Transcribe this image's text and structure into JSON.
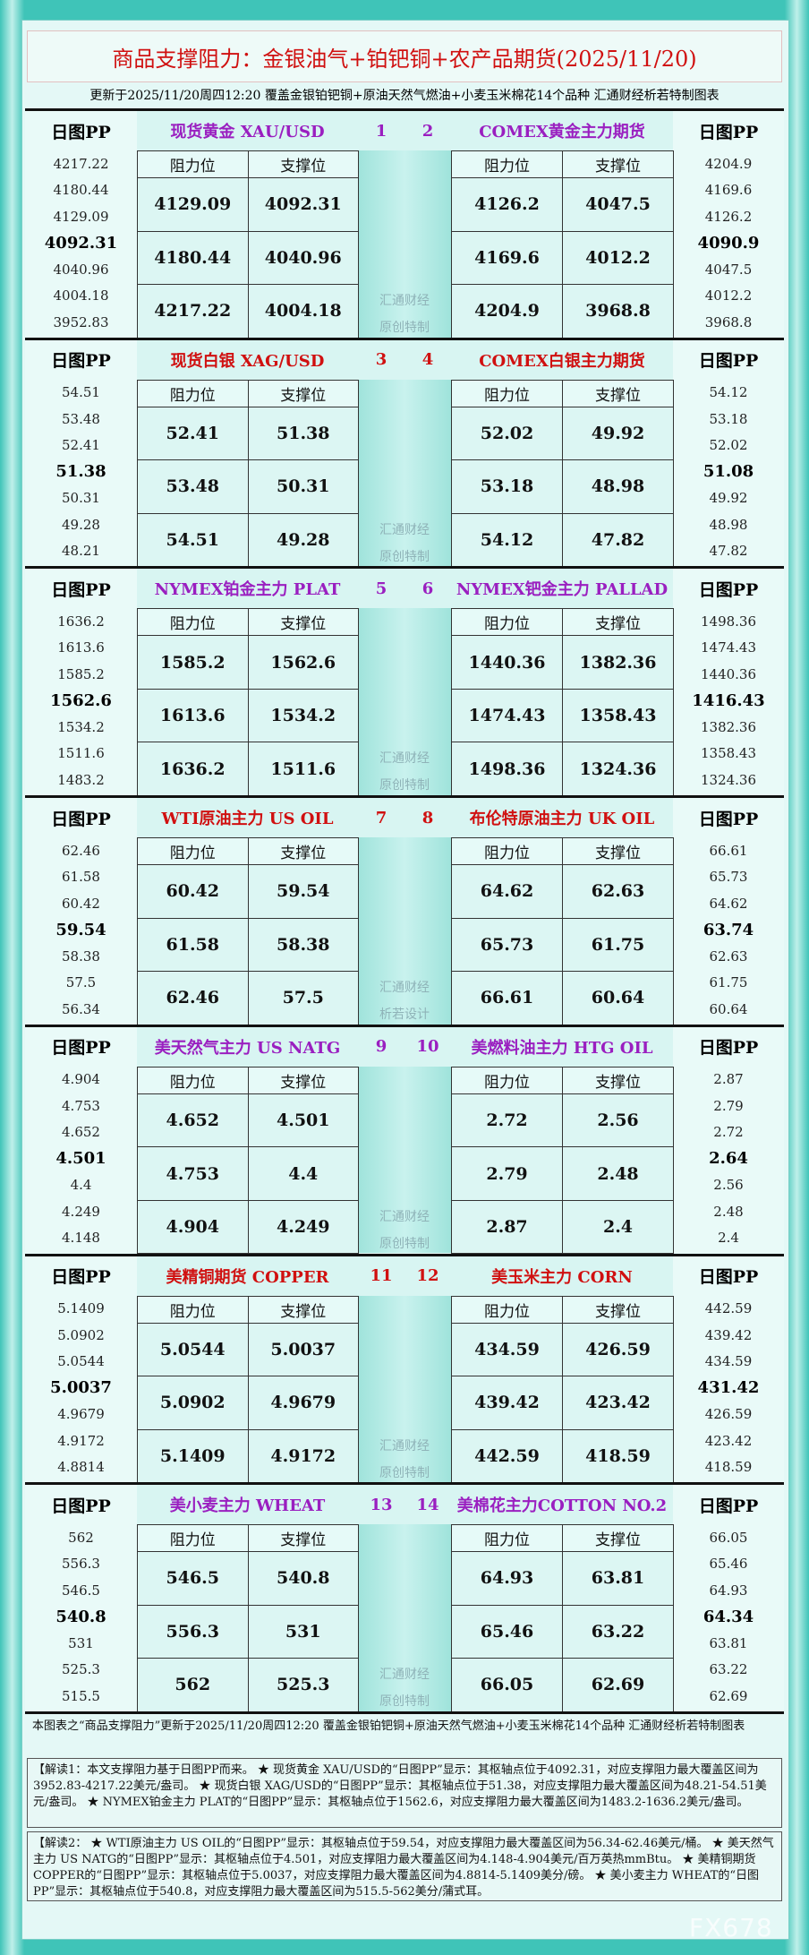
{
  "header": {
    "title": "商品支撑阻力：金银油气+铂钯铜+农产品期货(2025/11/20)",
    "subtitle": "更新于2025/11/20周四12:20 覆盖金银铂钯铜+原油天然气燃油+小麦玉米棉花14个品种 汇通财经析若特制图表"
  },
  "panels": [
    {
      "numbers": [
        "1",
        "2"
      ],
      "watermark": [
        "汇通财经",
        "原创特制"
      ],
      "left": {
        "pp_label": "日图PP",
        "name": "现货黄金 XAU/USD",
        "pp_levels": [
          "4217.22",
          "4180.44",
          "4129.09",
          "4092.31",
          "4040.96",
          "4004.18",
          "3952.83"
        ],
        "table": {
          "headers": [
            "阻力位",
            "支撑位"
          ],
          "rows": [
            [
              "4129.09",
              "4092.31"
            ],
            [
              "4180.44",
              "4040.96"
            ],
            [
              "4217.22",
              "4004.18"
            ]
          ]
        }
      },
      "right": {
        "pp_label": "日图PP",
        "name": "COMEX黄金主力期货",
        "pp_levels": [
          "4204.9",
          "4169.6",
          "4126.2",
          "4090.9",
          "4047.5",
          "4012.2",
          "3968.8"
        ],
        "table": {
          "headers": [
            "阻力位",
            "支撑位"
          ],
          "rows": [
            [
              "4126.2",
              "4047.5"
            ],
            [
              "4169.6",
              "4012.2"
            ],
            [
              "4204.9",
              "3968.8"
            ]
          ]
        }
      }
    },
    {
      "numbers": [
        "3",
        "4"
      ],
      "watermark": [
        "汇通财经",
        "原创特制"
      ],
      "left": {
        "pp_label": "日图PP",
        "name": "现货白银 XAG/USD",
        "pp_levels": [
          "54.51",
          "53.48",
          "52.41",
          "51.38",
          "50.31",
          "49.28",
          "48.21"
        ],
        "table": {
          "headers": [
            "阻力位",
            "支撑位"
          ],
          "rows": [
            [
              "52.41",
              "51.38"
            ],
            [
              "53.48",
              "50.31"
            ],
            [
              "54.51",
              "49.28"
            ]
          ]
        }
      },
      "right": {
        "pp_label": "日图PP",
        "name": "COMEX白银主力期货",
        "pp_levels": [
          "54.12",
          "53.18",
          "52.02",
          "51.08",
          "49.92",
          "48.98",
          "47.82"
        ],
        "table": {
          "headers": [
            "阻力位",
            "支撑位"
          ],
          "rows": [
            [
              "52.02",
              "49.92"
            ],
            [
              "53.18",
              "48.98"
            ],
            [
              "54.12",
              "47.82"
            ]
          ]
        }
      }
    },
    {
      "numbers": [
        "5",
        "6"
      ],
      "watermark": [
        "汇通财经",
        "原创特制"
      ],
      "left": {
        "pp_label": "日图PP",
        "name": "NYMEX铂金主力 PLAT",
        "pp_levels": [
          "1636.2",
          "1613.6",
          "1585.2",
          "1562.6",
          "1534.2",
          "1511.6",
          "1483.2"
        ],
        "table": {
          "headers": [
            "阻力位",
            "支撑位"
          ],
          "rows": [
            [
              "1585.2",
              "1562.6"
            ],
            [
              "1613.6",
              "1534.2"
            ],
            [
              "1636.2",
              "1511.6"
            ]
          ]
        }
      },
      "right": {
        "pp_label": "日图PP",
        "name": "NYMEX钯金主力 PALLAD",
        "pp_levels": [
          "1498.36",
          "1474.43",
          "1440.36",
          "1416.43",
          "1382.36",
          "1358.43",
          "1324.36"
        ],
        "table": {
          "headers": [
            "阻力位",
            "支撑位"
          ],
          "rows": [
            [
              "1440.36",
              "1382.36"
            ],
            [
              "1474.43",
              "1358.43"
            ],
            [
              "1498.36",
              "1324.36"
            ]
          ]
        }
      }
    },
    {
      "numbers": [
        "7",
        "8"
      ],
      "watermark": [
        "汇通财经",
        "析若设计"
      ],
      "left": {
        "pp_label": "日图PP",
        "name": "WTI原油主力 US OIL",
        "pp_levels": [
          "62.46",
          "61.58",
          "60.42",
          "59.54",
          "58.38",
          "57.5",
          "56.34"
        ],
        "table": {
          "headers": [
            "阻力位",
            "支撑位"
          ],
          "rows": [
            [
              "60.42",
              "59.54"
            ],
            [
              "61.58",
              "58.38"
            ],
            [
              "62.46",
              "57.5"
            ]
          ]
        }
      },
      "right": {
        "pp_label": "日图PP",
        "name": "布伦特原油主力 UK OIL",
        "pp_levels": [
          "66.61",
          "65.73",
          "64.62",
          "63.74",
          "62.63",
          "61.75",
          "60.64"
        ],
        "table": {
          "headers": [
            "阻力位",
            "支撑位"
          ],
          "rows": [
            [
              "64.62",
              "62.63"
            ],
            [
              "65.73",
              "61.75"
            ],
            [
              "66.61",
              "60.64"
            ]
          ]
        }
      }
    },
    {
      "numbers": [
        "9",
        "10"
      ],
      "watermark": [
        "汇通财经",
        "原创特制"
      ],
      "left": {
        "pp_label": "日图PP",
        "name": "美天然气主力 US NATG",
        "pp_levels": [
          "4.904",
          "4.753",
          "4.652",
          "4.501",
          "4.4",
          "4.249",
          "4.148"
        ],
        "table": {
          "headers": [
            "阻力位",
            "支撑位"
          ],
          "rows": [
            [
              "4.652",
              "4.501"
            ],
            [
              "4.753",
              "4.4"
            ],
            [
              "4.904",
              "4.249"
            ]
          ]
        }
      },
      "right": {
        "pp_label": "日图PP",
        "name": "美燃料油主力 HTG OIL",
        "pp_levels": [
          "2.87",
          "2.79",
          "2.72",
          "2.64",
          "2.56",
          "2.48",
          "2.4"
        ],
        "table": {
          "headers": [
            "阻力位",
            "支撑位"
          ],
          "rows": [
            [
              "2.72",
              "2.56"
            ],
            [
              "2.79",
              "2.48"
            ],
            [
              "2.87",
              "2.4"
            ]
          ]
        }
      }
    },
    {
      "numbers": [
        "11",
        "12"
      ],
      "watermark": [
        "汇通财经",
        "原创特制"
      ],
      "left": {
        "pp_label": "日图PP",
        "name": "美精铜期货 COPPER",
        "pp_levels": [
          "5.1409",
          "5.0902",
          "5.0544",
          "5.0037",
          "4.9679",
          "4.9172",
          "4.8814"
        ],
        "table": {
          "headers": [
            "阻力位",
            "支撑位"
          ],
          "rows": [
            [
              "5.0544",
              "5.0037"
            ],
            [
              "5.0902",
              "4.9679"
            ],
            [
              "5.1409",
              "4.9172"
            ]
          ]
        }
      },
      "right": {
        "pp_label": "日图PP",
        "name": "美玉米主力 CORN",
        "pp_levels": [
          "442.59",
          "439.42",
          "434.59",
          "431.42",
          "426.59",
          "423.42",
          "418.59"
        ],
        "table": {
          "headers": [
            "阻力位",
            "支撑位"
          ],
          "rows": [
            [
              "434.59",
              "426.59"
            ],
            [
              "439.42",
              "423.42"
            ],
            [
              "442.59",
              "418.59"
            ]
          ]
        }
      }
    },
    {
      "numbers": [
        "13",
        "14"
      ],
      "watermark": [
        "汇通财经",
        "原创特制"
      ],
      "left": {
        "pp_label": "日图PP",
        "name": "美小麦主力 WHEAT",
        "pp_levels": [
          "562",
          "556.3",
          "546.5",
          "540.8",
          "531",
          "525.3",
          "515.5"
        ],
        "table": {
          "headers": [
            "阻力位",
            "支撑位"
          ],
          "rows": [
            [
              "546.5",
              "540.8"
            ],
            [
              "556.3",
              "531"
            ],
            [
              "562",
              "525.3"
            ]
          ]
        }
      },
      "right": {
        "pp_label": "日图PP",
        "name": "美棉花主力COTTON NO.2",
        "pp_levels": [
          "66.05",
          "65.46",
          "64.93",
          "64.34",
          "63.81",
          "63.22",
          "62.69"
        ],
        "table": {
          "headers": [
            "阻力位",
            "支撑位"
          ],
          "rows": [
            [
              "64.93",
              "63.81"
            ],
            [
              "65.46",
              "63.22"
            ],
            [
              "66.05",
              "62.69"
            ]
          ]
        }
      }
    }
  ],
  "footer": {
    "note": "本图表之“商品支撑阻力”更新于2025/11/20周四12:20 覆盖金银铂钯铜+原油天然气燃油+小麦玉米棉花14个品种 汇通财经析若特制图表",
    "explanations": [
      "【解读1：本文支撑阻力基于日图PP而来。 ★ 现货黄金 XAU/USD的“日图PP”显示：其枢轴点位于4092.31，对应支撑阻力最大覆盖区间为3952.83-4217.22美元/盎司。 ★ 现货白银 XAG/USD的“日图PP”显示：其枢轴点位于51.38，对应支撑阻力最大覆盖区间为48.21-54.51美元/盎司。 ★ NYMEX铂金主力 PLAT的“日图PP”显示：其枢轴点位于1562.6，对应支撑阻力最大覆盖区间为1483.2-1636.2美元/盎司。",
      "【解读2： ★ WTI原油主力 US OIL的“日图PP”显示：其枢轴点位于59.54，对应支撑阻力最大覆盖区间为56.34-62.46美元/桶。 ★ 美天然气主力 US NATG的“日图PP”显示：其枢轴点位于4.501，对应支撑阻力最大覆盖区间为4.148-4.904美元/百万英热mmBtu。 ★ 美精铜期货 COPPER的“日图PP”显示：其枢轴点位于5.0037，对应支撑阻力最大覆盖区间为4.8814-5.1409美分/磅。 ★ 美小麦主力 WHEAT的“日图PP”显示：其枢轴点位于540.8，对应支撑阻力最大覆盖区间为515.5-562美分/蒲式耳。"
    ],
    "watermark": "FX678"
  }
}
